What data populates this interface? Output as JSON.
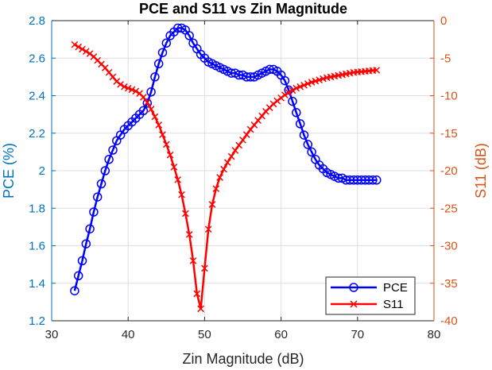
{
  "chart_data": {
    "type": "line",
    "title": "PCE and S11 vs Zin Magnitude",
    "xlabel": "Zin Magnitude (dB)",
    "ylabel_left": "PCE (%)",
    "ylabel_right": "S11 (dB)",
    "xlim": [
      30,
      80
    ],
    "ylim_left": [
      1.2,
      2.8
    ],
    "ylim_right": [
      -40,
      0
    ],
    "xticks": [
      "30",
      "40",
      "50",
      "60",
      "70",
      "80"
    ],
    "yticks_left": [
      "1.2",
      "1.4",
      "1.6",
      "1.8",
      "2",
      "2.2",
      "2.4",
      "2.6",
      "2.8"
    ],
    "yticks_right": [
      "-40",
      "-35",
      "-30",
      "-25",
      "-20",
      "-15",
      "-10",
      "-5",
      "0"
    ],
    "grid": true,
    "legend_position": "bottom-right",
    "colors": {
      "pce": "#0000ff",
      "s11": "#ff0000",
      "left_axis": "#0072bd",
      "right_axis": "#d95319",
      "grid": "#dfdfdf"
    },
    "series": [
      {
        "name": "PCE",
        "axis": "left",
        "marker": "circle",
        "x": [
          33.0,
          33.5,
          34.0,
          34.5,
          35.0,
          35.5,
          36.0,
          36.5,
          37.0,
          37.5,
          38.0,
          38.5,
          39.0,
          39.5,
          40.0,
          40.5,
          41.0,
          41.5,
          42.0,
          42.5,
          43.0,
          43.5,
          44.0,
          44.5,
          45.0,
          45.5,
          46.0,
          46.5,
          47.0,
          47.5,
          48.0,
          48.5,
          49.0,
          49.5,
          50.0,
          50.5,
          51.0,
          51.5,
          52.0,
          52.5,
          53.0,
          53.5,
          54.0,
          54.5,
          55.0,
          55.5,
          56.0,
          56.5,
          57.0,
          57.5,
          58.0,
          58.5,
          59.0,
          59.5,
          60.0,
          60.5,
          61.0,
          61.5,
          62.0,
          62.5,
          63.0,
          63.5,
          64.0,
          64.5,
          65.0,
          65.5,
          66.0,
          66.5,
          67.0,
          67.5,
          68.0,
          68.5,
          69.0,
          69.5,
          70.0,
          70.5,
          71.0,
          71.5,
          72.0,
          72.5
        ],
        "y": [
          1.36,
          1.44,
          1.52,
          1.61,
          1.69,
          1.78,
          1.86,
          1.93,
          2.0,
          2.06,
          2.11,
          2.16,
          2.19,
          2.22,
          2.24,
          2.26,
          2.28,
          2.3,
          2.32,
          2.36,
          2.42,
          2.5,
          2.57,
          2.63,
          2.68,
          2.72,
          2.74,
          2.76,
          2.76,
          2.75,
          2.72,
          2.68,
          2.65,
          2.62,
          2.6,
          2.58,
          2.57,
          2.56,
          2.55,
          2.54,
          2.53,
          2.52,
          2.52,
          2.51,
          2.51,
          2.5,
          2.5,
          2.5,
          2.51,
          2.52,
          2.53,
          2.54,
          2.54,
          2.53,
          2.51,
          2.48,
          2.43,
          2.37,
          2.31,
          2.25,
          2.19,
          2.14,
          2.1,
          2.06,
          2.03,
          2.01,
          1.99,
          1.98,
          1.97,
          1.96,
          1.96,
          1.95,
          1.95,
          1.95,
          1.95,
          1.95,
          1.95,
          1.95,
          1.95,
          1.95
        ]
      },
      {
        "name": "S11",
        "axis": "right",
        "marker": "x",
        "x": [
          33.0,
          33.5,
          34.0,
          34.5,
          35.0,
          35.5,
          36.0,
          36.5,
          37.0,
          37.5,
          38.0,
          38.5,
          39.0,
          39.5,
          40.0,
          40.5,
          41.0,
          41.5,
          42.0,
          42.5,
          43.0,
          43.5,
          44.0,
          44.5,
          45.0,
          45.5,
          46.0,
          46.5,
          47.0,
          47.5,
          48.0,
          48.5,
          49.0,
          49.5,
          50.0,
          50.5,
          51.0,
          51.5,
          52.0,
          52.5,
          53.0,
          53.5,
          54.0,
          54.5,
          55.0,
          55.5,
          56.0,
          56.5,
          57.0,
          57.5,
          58.0,
          58.5,
          59.0,
          59.5,
          60.0,
          60.5,
          61.0,
          61.5,
          62.0,
          62.5,
          63.0,
          63.5,
          64.0,
          64.5,
          65.0,
          65.5,
          66.0,
          66.5,
          67.0,
          67.5,
          68.0,
          68.5,
          69.0,
          69.5,
          70.0,
          70.5,
          71.0,
          71.5,
          72.0,
          72.5
        ],
        "y": [
          -3.2,
          -3.5,
          -3.8,
          -4.1,
          -4.4,
          -4.8,
          -5.3,
          -5.8,
          -6.3,
          -6.9,
          -7.5,
          -8.1,
          -8.5,
          -8.8,
          -9.0,
          -9.2,
          -9.4,
          -9.7,
          -10.2,
          -10.9,
          -11.8,
          -12.8,
          -13.9,
          -15.2,
          -16.5,
          -17.9,
          -19.5,
          -21.2,
          -23.2,
          -25.7,
          -28.5,
          -32.0,
          -36.4,
          -38.4,
          -33.0,
          -27.8,
          -24.5,
          -22.4,
          -20.9,
          -19.8,
          -18.9,
          -18.1,
          -17.3,
          -16.6,
          -15.9,
          -15.2,
          -14.5,
          -13.9,
          -13.3,
          -12.7,
          -12.1,
          -11.6,
          -11.1,
          -10.7,
          -10.3,
          -9.9,
          -9.6,
          -9.3,
          -9.0,
          -8.8,
          -8.6,
          -8.4,
          -8.2,
          -8.05,
          -7.9,
          -7.75,
          -7.6,
          -7.5,
          -7.4,
          -7.3,
          -7.2,
          -7.1,
          -7.0,
          -6.9,
          -6.85,
          -6.8,
          -6.75,
          -6.7,
          -6.65,
          -6.6
        ]
      }
    ]
  }
}
